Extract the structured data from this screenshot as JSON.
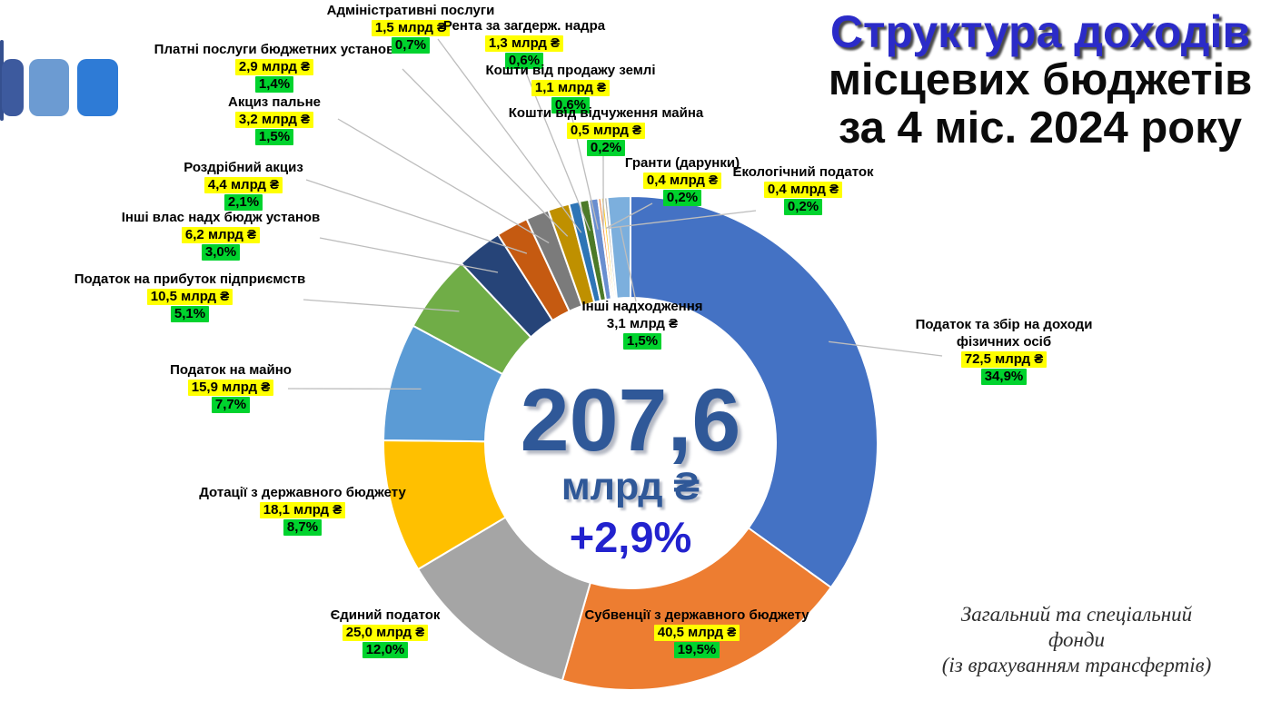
{
  "page": {
    "background": "#FFFFFF"
  },
  "logo": {
    "bar_colors": [
      "#35508F",
      "#3D5A9E",
      "#6C9BD2",
      "#2E7BD6"
    ]
  },
  "title": {
    "line1": "Структура доходів",
    "line2": "місцевих бюджетів",
    "line3": "за 4 міс. 2024 року",
    "accent_color": "#2B2BC8"
  },
  "donut_center": {
    "total_value": "207,6",
    "total_unit": "млрд ₴",
    "growth": "+2,9%",
    "value_color": "#2F5898",
    "growth_color": "#2222CE"
  },
  "footnote": {
    "line1": "Загальний та спеціальний фонди",
    "line2": "(із врахуванням трансфертів)"
  },
  "highlights": {
    "value_bg": "#FFFF00",
    "pct_bg": "#00D32E"
  },
  "chart_data": {
    "type": "pie",
    "subtype": "donut",
    "title": "Структура доходів місцевих бюджетів за 4 міс. 2024 року",
    "units": "млрд ₴",
    "total": {
      "value": 207.6,
      "unit": "млрд ₴",
      "yoy_change": "+2,9%"
    },
    "start_angle_deg": 0,
    "direction": "clockwise",
    "legend_position": "labels-around",
    "segments": [
      {
        "name": "Податок та збір на доходи фізичних осіб",
        "value": 72.5,
        "value_label": "72,5 млрд ₴",
        "pct": 34.9,
        "pct_label": "34,9%",
        "color": "#4472C4"
      },
      {
        "name": "Субвенції з державного бюджету",
        "value": 40.5,
        "value_label": "40,5 млрд ₴",
        "pct": 19.5,
        "pct_label": "19,5%",
        "color": "#ED7D31"
      },
      {
        "name": "Єдиний податок",
        "value": 25.0,
        "value_label": "25,0 млрд ₴",
        "pct": 12.0,
        "pct_label": "12,0%",
        "color": "#A5A5A5"
      },
      {
        "name": "Дотації з державного бюджету",
        "value": 18.1,
        "value_label": "18,1 млрд ₴",
        "pct": 8.7,
        "pct_label": "8,7%",
        "color": "#FFC000"
      },
      {
        "name": "Податок на майно",
        "value": 15.9,
        "value_label": "15,9 млрд ₴",
        "pct": 7.7,
        "pct_label": "7,7%",
        "color": "#5B9BD5"
      },
      {
        "name": "Податок на прибуток підприємств",
        "value": 10.5,
        "value_label": "10,5 млрд ₴",
        "pct": 5.1,
        "pct_label": "5,1%",
        "color": "#70AD47"
      },
      {
        "name": "Інші влас надх бюдж установ",
        "value": 6.2,
        "value_label": "6,2 млрд ₴",
        "pct": 3.0,
        "pct_label": "3,0%",
        "color": "#264478"
      },
      {
        "name": "Роздрібний акциз",
        "value": 4.4,
        "value_label": "4,4 млрд ₴",
        "pct": 2.1,
        "pct_label": "2,1%",
        "color": "#C55A11"
      },
      {
        "name": "Акциз пальне",
        "value": 3.2,
        "value_label": "3,2 млрд ₴",
        "pct": 1.5,
        "pct_label": "1,5%",
        "color": "#7B7B7B"
      },
      {
        "name": "Платні послуги бюджетних установ",
        "value": 2.9,
        "value_label": "2,9 млрд ₴",
        "pct": 1.4,
        "pct_label": "1,4%",
        "color": "#BF9000"
      },
      {
        "name": "Адміністративні послуги",
        "value": 1.5,
        "value_label": "1,5 млрд ₴",
        "pct": 0.7,
        "pct_label": "0,7%",
        "color": "#2E75B6"
      },
      {
        "name": "Рента за загдерж. надра",
        "value": 1.3,
        "value_label": "1,3 млрд ₴",
        "pct": 0.6,
        "pct_label": "0,6%",
        "color": "#4C7A28"
      },
      {
        "name": "Кошти від продажу землі",
        "value": 1.1,
        "value_label": "1,1 млрд ₴",
        "pct": 0.6,
        "pct_label": "0,6%",
        "color": "#698ED0"
      },
      {
        "name": "Кошти від відчуження майна",
        "value": 0.5,
        "value_label": "0,5 млрд ₴",
        "pct": 0.2,
        "pct_label": "0,2%",
        "color": "#F1975A"
      },
      {
        "name": "Гранти (дарунки)",
        "value": 0.4,
        "value_label": "0,4 млрд ₴",
        "pct": 0.2,
        "pct_label": "0,2%",
        "color": "#FFCD33"
      },
      {
        "name": "Екологічний податок",
        "value": 0.4,
        "value_label": "0,4 млрд ₴",
        "pct": 0.2,
        "pct_label": "0,2%",
        "color": "#B7B7B7"
      },
      {
        "name": "Інші надходження",
        "value": 3.1,
        "value_label": "3,1 млрд ₴",
        "pct": 1.5,
        "pct_label": "1,5%",
        "color": "#7CAFDD"
      }
    ]
  }
}
